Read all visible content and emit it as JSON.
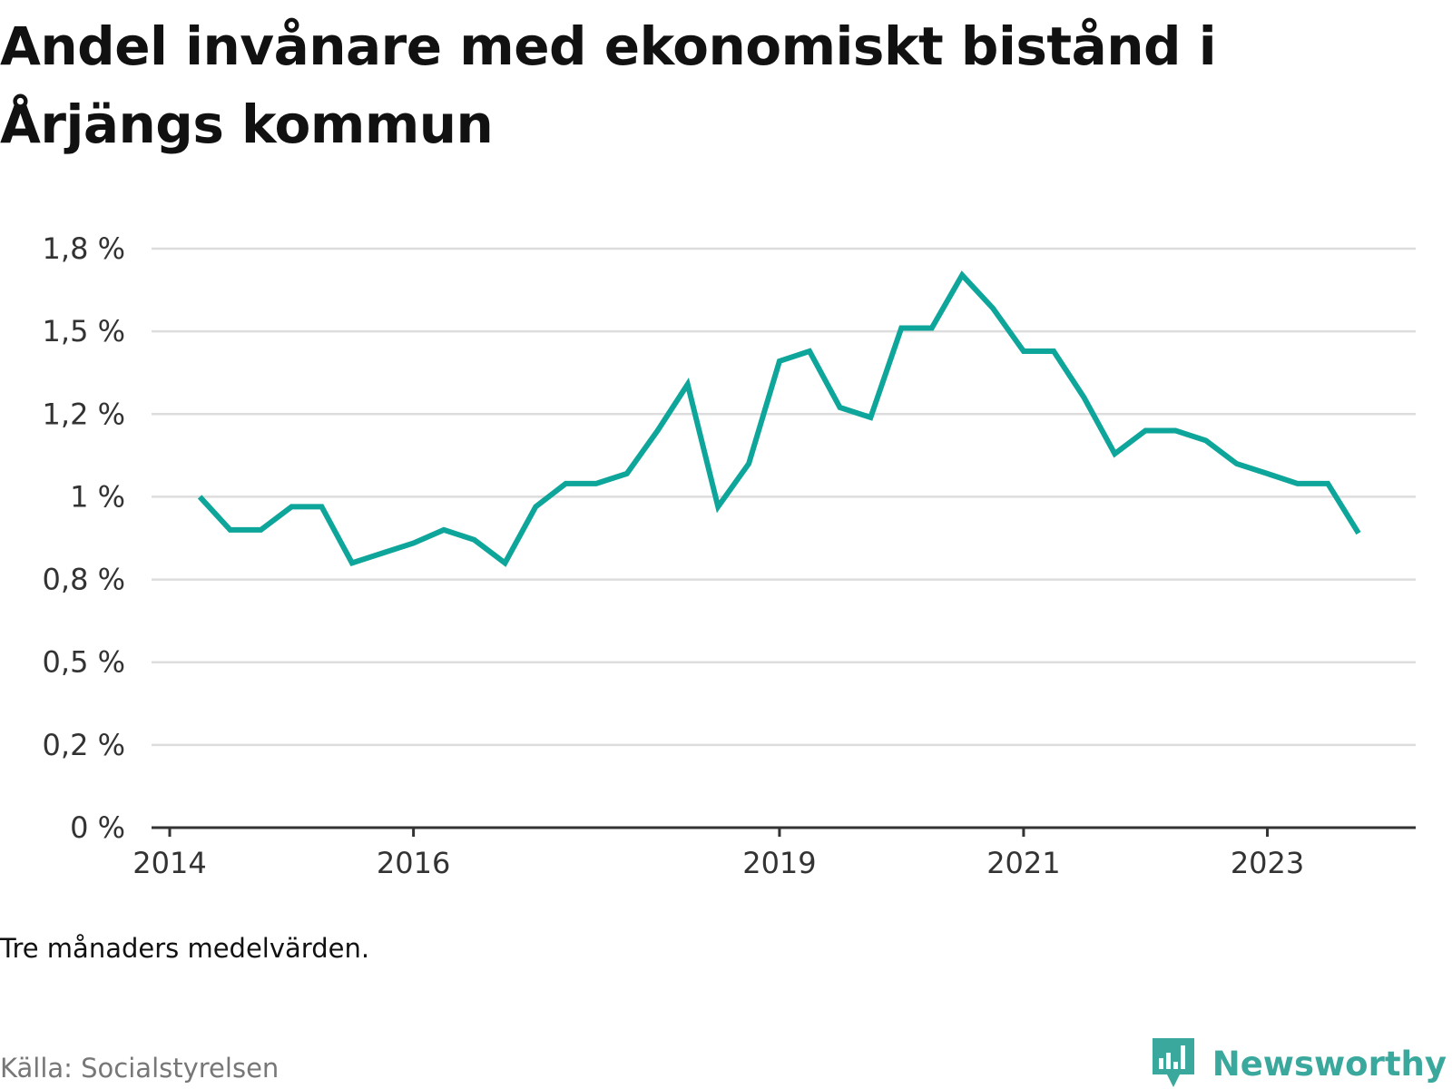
{
  "title": "Andel invånare med ekonomiskt bistånd i Årjängs kommun",
  "note": "Tre månaders medelvärden.",
  "source": "Källa: Socialstyrelsen",
  "brand": {
    "name": "Newsworthy",
    "icon": "newsworthy-logo-icon",
    "color": "#3aa89d"
  },
  "colors": {
    "line": "#0ea59a",
    "grid": "#dddddd",
    "axis": "#333333"
  },
  "chart_data": {
    "type": "line",
    "title": "Andel invånare med ekonomiskt bistånd i Årjängs kommun",
    "xlabel": "",
    "ylabel": "",
    "x_ticks": [
      {
        "label": "2014",
        "date": "2014-01-01"
      },
      {
        "label": "2016",
        "date": "2016-01-01"
      },
      {
        "label": "2019",
        "date": "2019-01-01"
      },
      {
        "label": "2021",
        "date": "2021-01-01"
      },
      {
        "label": "2023",
        "date": "2023-01-01"
      }
    ],
    "x_range": [
      "2014-01-01",
      "2024-06-01"
    ],
    "y_ticks": [
      {
        "value": 0,
        "label": "0 %"
      },
      {
        "value": 0.25,
        "label": "0,2 %"
      },
      {
        "value": 0.5,
        "label": "0,5 %"
      },
      {
        "value": 0.75,
        "label": "0,8 %"
      },
      {
        "value": 1.0,
        "label": "1 %"
      },
      {
        "value": 1.25,
        "label": "1,2 %"
      },
      {
        "value": 1.5,
        "label": "1,5 %"
      },
      {
        "value": 1.75,
        "label": "1,8 %"
      }
    ],
    "ylim": [
      0,
      1.75
    ],
    "grid": true,
    "legend": "none",
    "series": [
      {
        "values": [
          {
            "x": "2014-04-01",
            "y": 1.0
          },
          {
            "x": "2014-07-01",
            "y": 0.9
          },
          {
            "x": "2014-10-01",
            "y": 0.9
          },
          {
            "x": "2015-01-01",
            "y": 0.97
          },
          {
            "x": "2015-04-01",
            "y": 0.97
          },
          {
            "x": "2015-07-01",
            "y": 0.8
          },
          {
            "x": "2015-10-01",
            "y": 0.83
          },
          {
            "x": "2016-01-01",
            "y": 0.86
          },
          {
            "x": "2016-04-01",
            "y": 0.9
          },
          {
            "x": "2016-07-01",
            "y": 0.87
          },
          {
            "x": "2016-10-01",
            "y": 0.8
          },
          {
            "x": "2017-01-01",
            "y": 0.97
          },
          {
            "x": "2017-04-01",
            "y": 1.04
          },
          {
            "x": "2017-07-01",
            "y": 1.04
          },
          {
            "x": "2017-10-01",
            "y": 1.07
          },
          {
            "x": "2018-01-01",
            "y": 1.2
          },
          {
            "x": "2018-04-01",
            "y": 1.34
          },
          {
            "x": "2018-07-01",
            "y": 0.97
          },
          {
            "x": "2018-10-01",
            "y": 1.1
          },
          {
            "x": "2019-01-01",
            "y": 1.41
          },
          {
            "x": "2019-04-01",
            "y": 1.44
          },
          {
            "x": "2019-07-01",
            "y": 1.27
          },
          {
            "x": "2019-10-01",
            "y": 1.24
          },
          {
            "x": "2020-01-01",
            "y": 1.51
          },
          {
            "x": "2020-04-01",
            "y": 1.51
          },
          {
            "x": "2020-07-01",
            "y": 1.67
          },
          {
            "x": "2020-10-01",
            "y": 1.57
          },
          {
            "x": "2021-01-01",
            "y": 1.44
          },
          {
            "x": "2021-04-01",
            "y": 1.44
          },
          {
            "x": "2021-07-01",
            "y": 1.3
          },
          {
            "x": "2021-10-01",
            "y": 1.13
          },
          {
            "x": "2022-01-01",
            "y": 1.2
          },
          {
            "x": "2022-04-01",
            "y": 1.2
          },
          {
            "x": "2022-07-01",
            "y": 1.17
          },
          {
            "x": "2022-10-01",
            "y": 1.1
          },
          {
            "x": "2023-01-01",
            "y": 1.07
          },
          {
            "x": "2023-04-01",
            "y": 1.04
          },
          {
            "x": "2023-07-01",
            "y": 1.04
          },
          {
            "x": "2023-10-01",
            "y": 0.89
          }
        ]
      }
    ]
  }
}
